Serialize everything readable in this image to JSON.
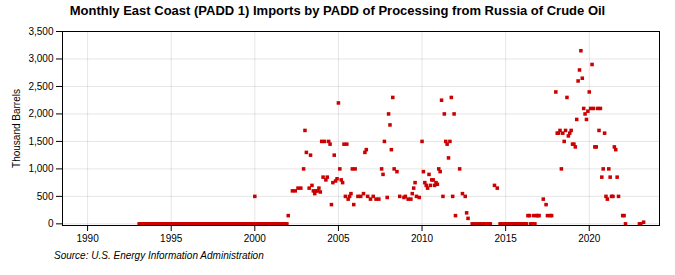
{
  "chart_data": {
    "type": "scatter",
    "title": "Monthly East Coast (PADD 1) Imports by PADD of Processing from Russia of Crude Oil",
    "ylabel": "Thousand Barrels",
    "source": "Source: U.S. Energy Information Administration",
    "color": "#cc0000",
    "marker": "square",
    "grid": true,
    "xlim": [
      1988.5,
      2024.2
    ],
    "ylim": [
      -30,
      3500
    ],
    "xticks": [
      1990,
      1995,
      2000,
      2005,
      2010,
      2015,
      2020
    ],
    "yticks": [
      0,
      500,
      {
        "value": 1000,
        "label": "1,000"
      },
      {
        "value": 1500,
        "label": "1,500"
      },
      {
        "value": 2000,
        "label": "2,000"
      },
      {
        "value": 2500,
        "label": "2,500"
      },
      {
        "value": 3000,
        "label": "3,000"
      },
      {
        "value": 3500,
        "label": "3,500"
      }
    ],
    "x": [
      1993.083,
      1993.167,
      1993.25,
      1993.333,
      1993.417,
      1993.5,
      1993.583,
      1993.667,
      1993.75,
      1993.833,
      1993.917,
      1994.0,
      1994.083,
      1994.167,
      1994.25,
      1994.333,
      1994.417,
      1994.5,
      1994.583,
      1994.667,
      1994.75,
      1994.833,
      1994.917,
      1995.0,
      1995.083,
      1995.167,
      1995.25,
      1995.333,
      1995.417,
      1995.5,
      1995.583,
      1995.667,
      1995.75,
      1995.833,
      1995.917,
      1996.0,
      1996.083,
      1996.167,
      1996.25,
      1996.333,
      1996.417,
      1996.5,
      1996.583,
      1996.667,
      1996.75,
      1996.833,
      1996.917,
      1997.0,
      1997.083,
      1997.167,
      1997.25,
      1997.333,
      1997.417,
      1997.5,
      1997.583,
      1997.667,
      1997.75,
      1997.833,
      1997.917,
      1998.0,
      1998.083,
      1998.167,
      1998.25,
      1998.333,
      1998.417,
      1998.5,
      1998.583,
      1998.667,
      1998.75,
      1998.833,
      1998.917,
      1999.0,
      1999.083,
      1999.167,
      1999.25,
      1999.333,
      1999.417,
      1999.5,
      1999.583,
      1999.667,
      1999.75,
      1999.833,
      1999.917,
      2000.0,
      2000.083,
      2000.167,
      2000.25,
      2000.333,
      2000.417,
      2000.5,
      2000.583,
      2000.667,
      2000.75,
      2000.833,
      2000.917,
      2001.0,
      2001.083,
      2001.167,
      2001.25,
      2001.333,
      2001.417,
      2001.5,
      2001.583,
      2001.667,
      2001.75,
      2001.833,
      2001.917,
      2002.0,
      2002.25,
      2002.417,
      2002.583,
      2002.75,
      2002.917,
      2003.0,
      2003.083,
      2003.25,
      2003.333,
      2003.417,
      2003.5,
      2003.583,
      2003.667,
      2003.75,
      2003.833,
      2003.917,
      2004.0,
      2004.083,
      2004.167,
      2004.25,
      2004.333,
      2004.417,
      2004.5,
      2004.583,
      2004.667,
      2004.75,
      2004.833,
      2004.917,
      2005.0,
      2005.083,
      2005.167,
      2005.25,
      2005.333,
      2005.417,
      2005.5,
      2005.583,
      2005.667,
      2005.75,
      2005.833,
      2005.917,
      2006.0,
      2006.167,
      2006.333,
      2006.5,
      2006.583,
      2006.667,
      2006.75,
      2006.917,
      2007.083,
      2007.25,
      2007.417,
      2007.583,
      2007.667,
      2007.75,
      2007.917,
      2008.0,
      2008.083,
      2008.167,
      2008.25,
      2008.333,
      2008.5,
      2008.667,
      2008.917,
      2009.0,
      2009.167,
      2009.333,
      2009.417,
      2009.5,
      2009.583,
      2009.667,
      2009.833,
      2010.0,
      2010.083,
      2010.167,
      2010.25,
      2010.333,
      2010.417,
      2010.5,
      2010.583,
      2010.667,
      2010.75,
      2010.833,
      2010.917,
      2011.0,
      2011.083,
      2011.167,
      2011.25,
      2011.333,
      2011.417,
      2011.5,
      2011.583,
      2011.667,
      2011.75,
      2011.833,
      2011.917,
      2012.0,
      2012.25,
      2012.417,
      2012.583,
      2012.667,
      2012.75,
      2013.0,
      2013.083,
      2013.25,
      2013.417,
      2013.5,
      2013.667,
      2013.75,
      2013.917,
      2014.0,
      2014.083,
      2014.333,
      2014.5,
      2014.667,
      2014.75,
      2014.917,
      2015.0,
      2015.083,
      2015.167,
      2015.25,
      2015.333,
      2015.417,
      2015.5,
      2015.583,
      2015.667,
      2015.75,
      2015.833,
      2015.917,
      2016.0,
      2016.083,
      2016.167,
      2016.25,
      2016.333,
      2016.417,
      2016.5,
      2016.583,
      2016.667,
      2016.75,
      2016.833,
      2016.917,
      2017.0,
      2017.25,
      2017.417,
      2017.5,
      2017.667,
      2017.75,
      2018.0,
      2018.083,
      2018.167,
      2018.25,
      2018.333,
      2018.417,
      2018.5,
      2018.583,
      2018.667,
      2018.75,
      2018.833,
      2018.917,
      2019.0,
      2019.083,
      2019.167,
      2019.25,
      2019.333,
      2019.417,
      2019.5,
      2019.583,
      2019.667,
      2019.75,
      2019.833,
      2019.917,
      2020.0,
      2020.083,
      2020.167,
      2020.25,
      2020.333,
      2020.417,
      2020.5,
      2020.583,
      2020.667,
      2020.75,
      2020.833,
      2020.917,
      2021.0,
      2021.083,
      2021.167,
      2021.25,
      2021.333,
      2021.417,
      2021.5,
      2021.583,
      2021.667,
      2021.75,
      2022.0,
      2022.083,
      2022.167,
      2023.0,
      2023.083,
      2023.25
    ],
    "values": [
      0,
      0,
      0,
      0,
      0,
      0,
      0,
      0,
      0,
      0,
      0,
      0,
      0,
      0,
      0,
      0,
      0,
      0,
      0,
      0,
      0,
      0,
      0,
      0,
      0,
      0,
      0,
      0,
      0,
      0,
      0,
      0,
      0,
      0,
      0,
      0,
      0,
      0,
      0,
      0,
      0,
      0,
      0,
      0,
      0,
      0,
      0,
      0,
      0,
      0,
      0,
      0,
      0,
      0,
      0,
      0,
      0,
      0,
      0,
      0,
      0,
      0,
      0,
      0,
      0,
      0,
      0,
      0,
      0,
      0,
      0,
      0,
      0,
      0,
      0,
      0,
      0,
      0,
      0,
      0,
      0,
      0,
      0,
      500,
      0,
      0,
      0,
      0,
      0,
      0,
      0,
      0,
      0,
      0,
      0,
      0,
      0,
      0,
      0,
      0,
      0,
      0,
      0,
      0,
      0,
      0,
      0,
      150,
      600,
      600,
      650,
      650,
      1000,
      1700,
      1300,
      650,
      1250,
      700,
      600,
      550,
      600,
      600,
      650,
      580,
      1500,
      850,
      1500,
      800,
      850,
      1500,
      1450,
      350,
      750,
      1250,
      780,
      820,
      2200,
      1000,
      800,
      750,
      1450,
      500,
      1450,
      450,
      500,
      550,
      1000,
      350,
      1000,
      500,
      500,
      550,
      1300,
      1350,
      500,
      450,
      500,
      450,
      450,
      1000,
      900,
      1500,
      480,
      2000,
      1800,
      1350,
      2300,
      1000,
      950,
      500,
      480,
      500,
      450,
      450,
      550,
      650,
      750,
      500,
      480,
      1500,
      950,
      750,
      700,
      650,
      900,
      700,
      800,
      800,
      700,
      750,
      720,
      1000,
      950,
      2250,
      500,
      2000,
      1500,
      1450,
      1200,
      1500,
      2300,
      500,
      2000,
      150,
      1000,
      550,
      500,
      200,
      100,
      0,
      0,
      0,
      0,
      0,
      0,
      0,
      0,
      0,
      0,
      700,
      650,
      0,
      0,
      0,
      0,
      0,
      0,
      0,
      0,
      0,
      0,
      0,
      0,
      0,
      0,
      0,
      0,
      0,
      0,
      0,
      150,
      150,
      0,
      0,
      150,
      0,
      150,
      150,
      150,
      450,
      350,
      150,
      150,
      150,
      2400,
      1650,
      1650,
      1700,
      1000,
      1650,
      1500,
      1700,
      2300,
      1600,
      1650,
      1700,
      1450,
      1450,
      1400,
      1900,
      2600,
      2800,
      3150,
      2650,
      2100,
      2000,
      1900,
      2050,
      2400,
      2100,
      2900,
      2100,
      1400,
      1400,
      2100,
      1700,
      2100,
      850,
      1000,
      1650,
      500,
      450,
      1000,
      850,
      500,
      500,
      1400,
      1350,
      850,
      500,
      150,
      150,
      0,
      0,
      0,
      30
    ]
  }
}
